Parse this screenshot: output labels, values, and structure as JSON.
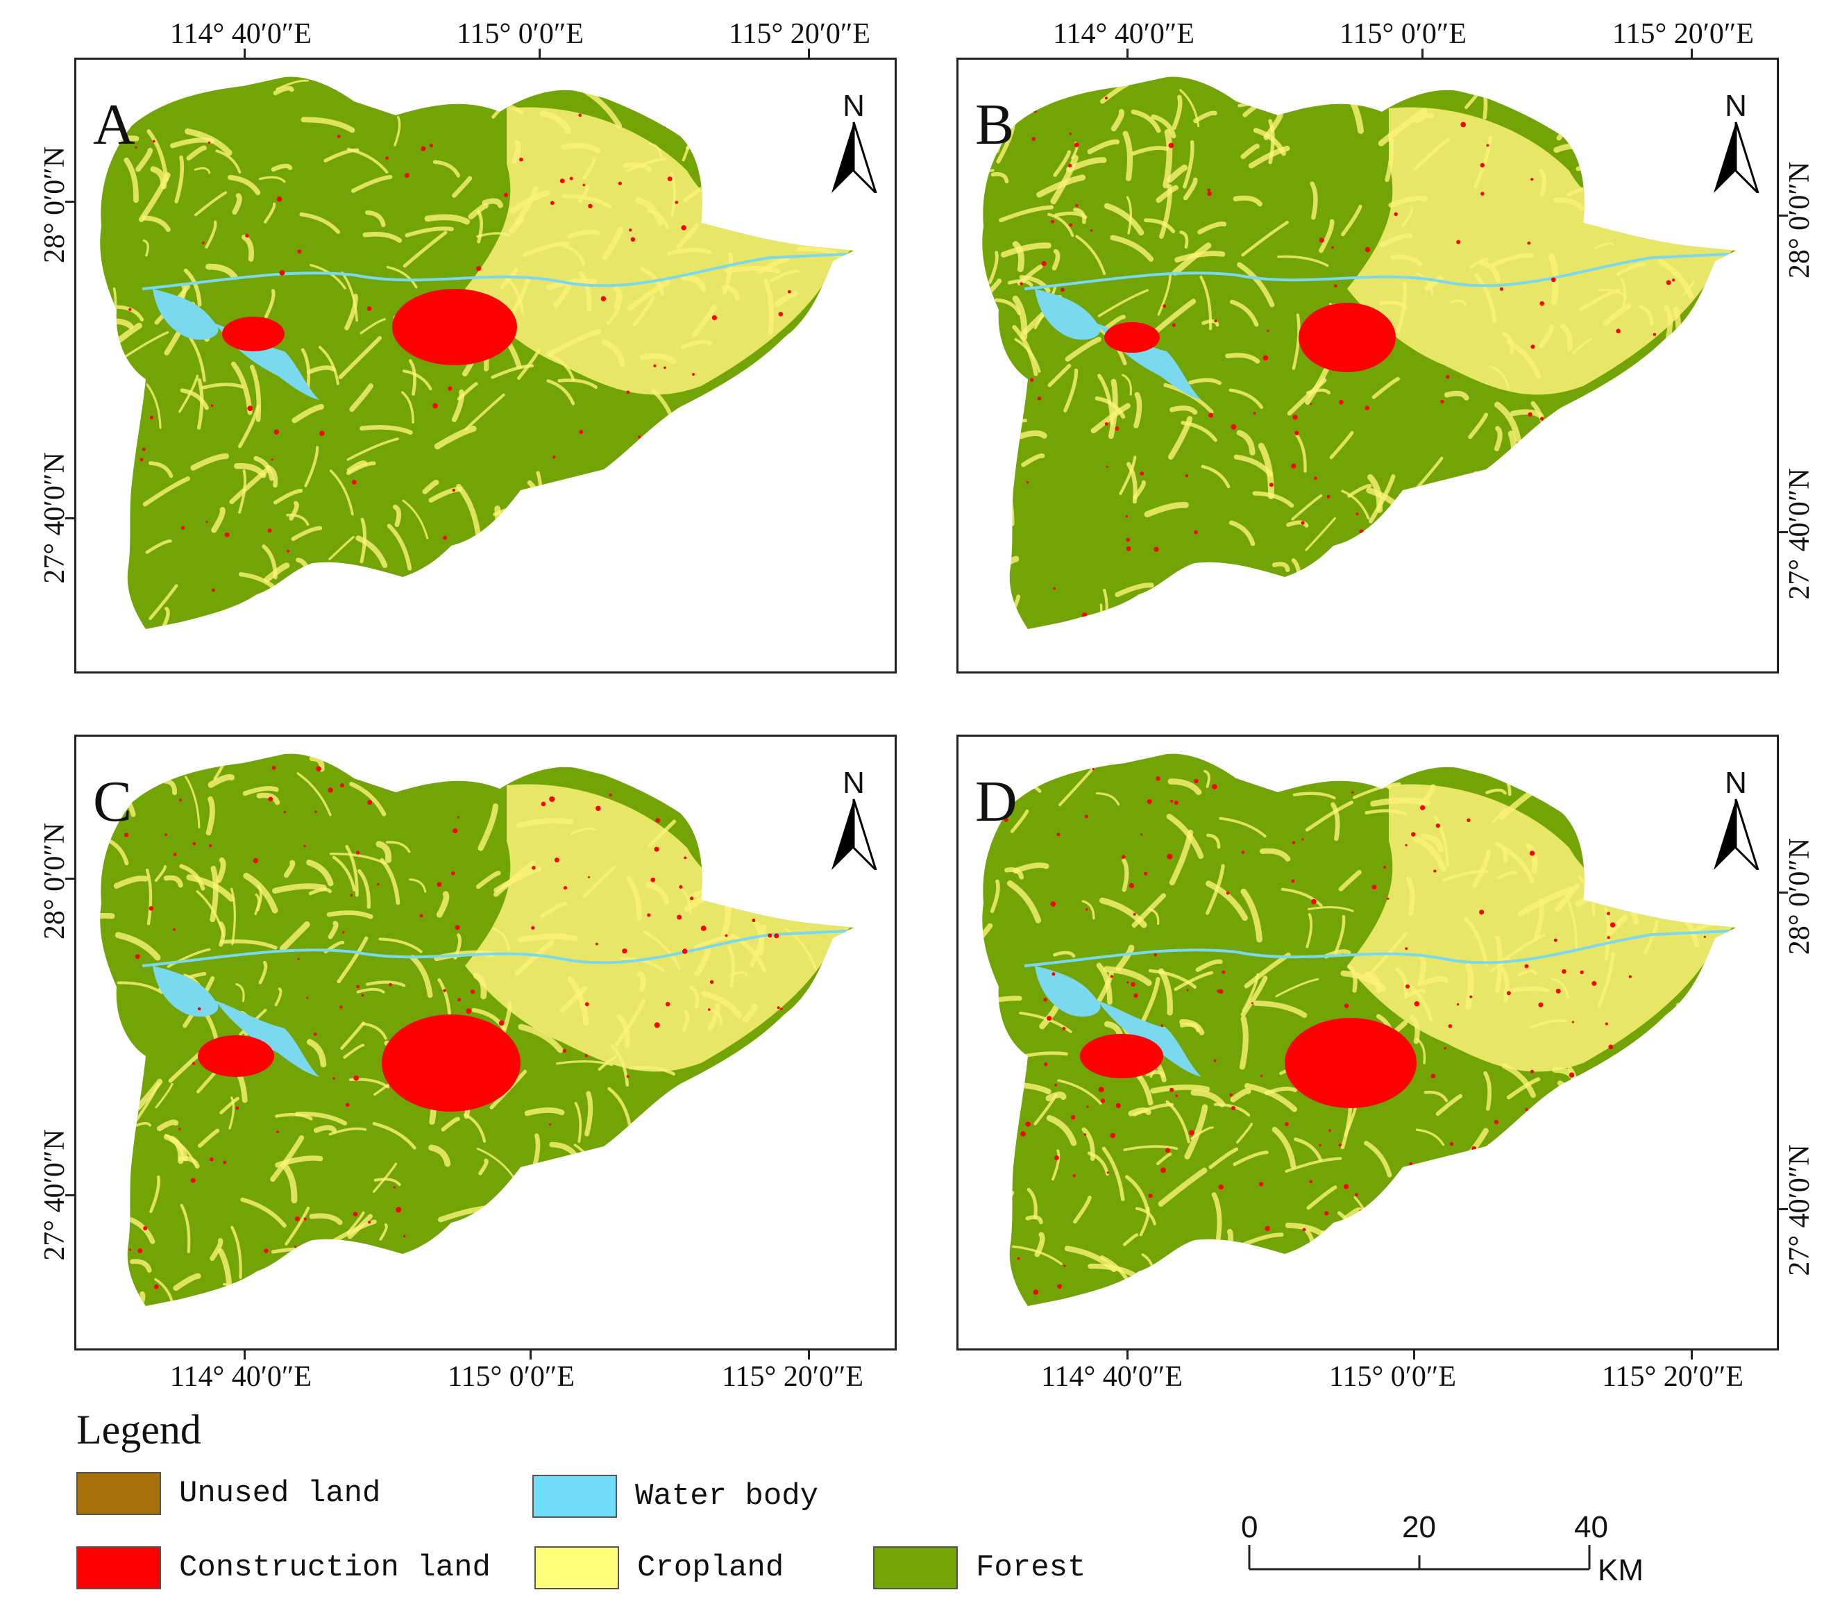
{
  "panels": [
    {
      "label": "A",
      "north": "N"
    },
    {
      "label": "B",
      "north": "N"
    },
    {
      "label": "C",
      "north": "N"
    },
    {
      "label": "D",
      "north": "N"
    }
  ],
  "longitude_labels": [
    "114° 40′0″E",
    "115° 0′0″E",
    "115° 20′0″E"
  ],
  "latitude_labels": [
    "28° 0′0″N",
    "27° 40′0″N"
  ],
  "legend": {
    "title": "Legend",
    "items": [
      {
        "label": "Unused land",
        "color": "#a8700b"
      },
      {
        "label": "Water body",
        "color": "#6fdcf8"
      },
      {
        "label": "Construction land",
        "color": "#ff0000"
      },
      {
        "label": "Cropland",
        "color": "#ffff7a"
      },
      {
        "label": "Forest",
        "color": "#71a404"
      }
    ]
  },
  "scale": {
    "ticks": [
      "0",
      "20",
      "40"
    ],
    "unit": "KM"
  },
  "colors": {
    "forest": "#71a404",
    "cropland": "#fbf278",
    "construction": "#ff0000",
    "water": "#7ad8ef",
    "unused": "#a8700b"
  }
}
